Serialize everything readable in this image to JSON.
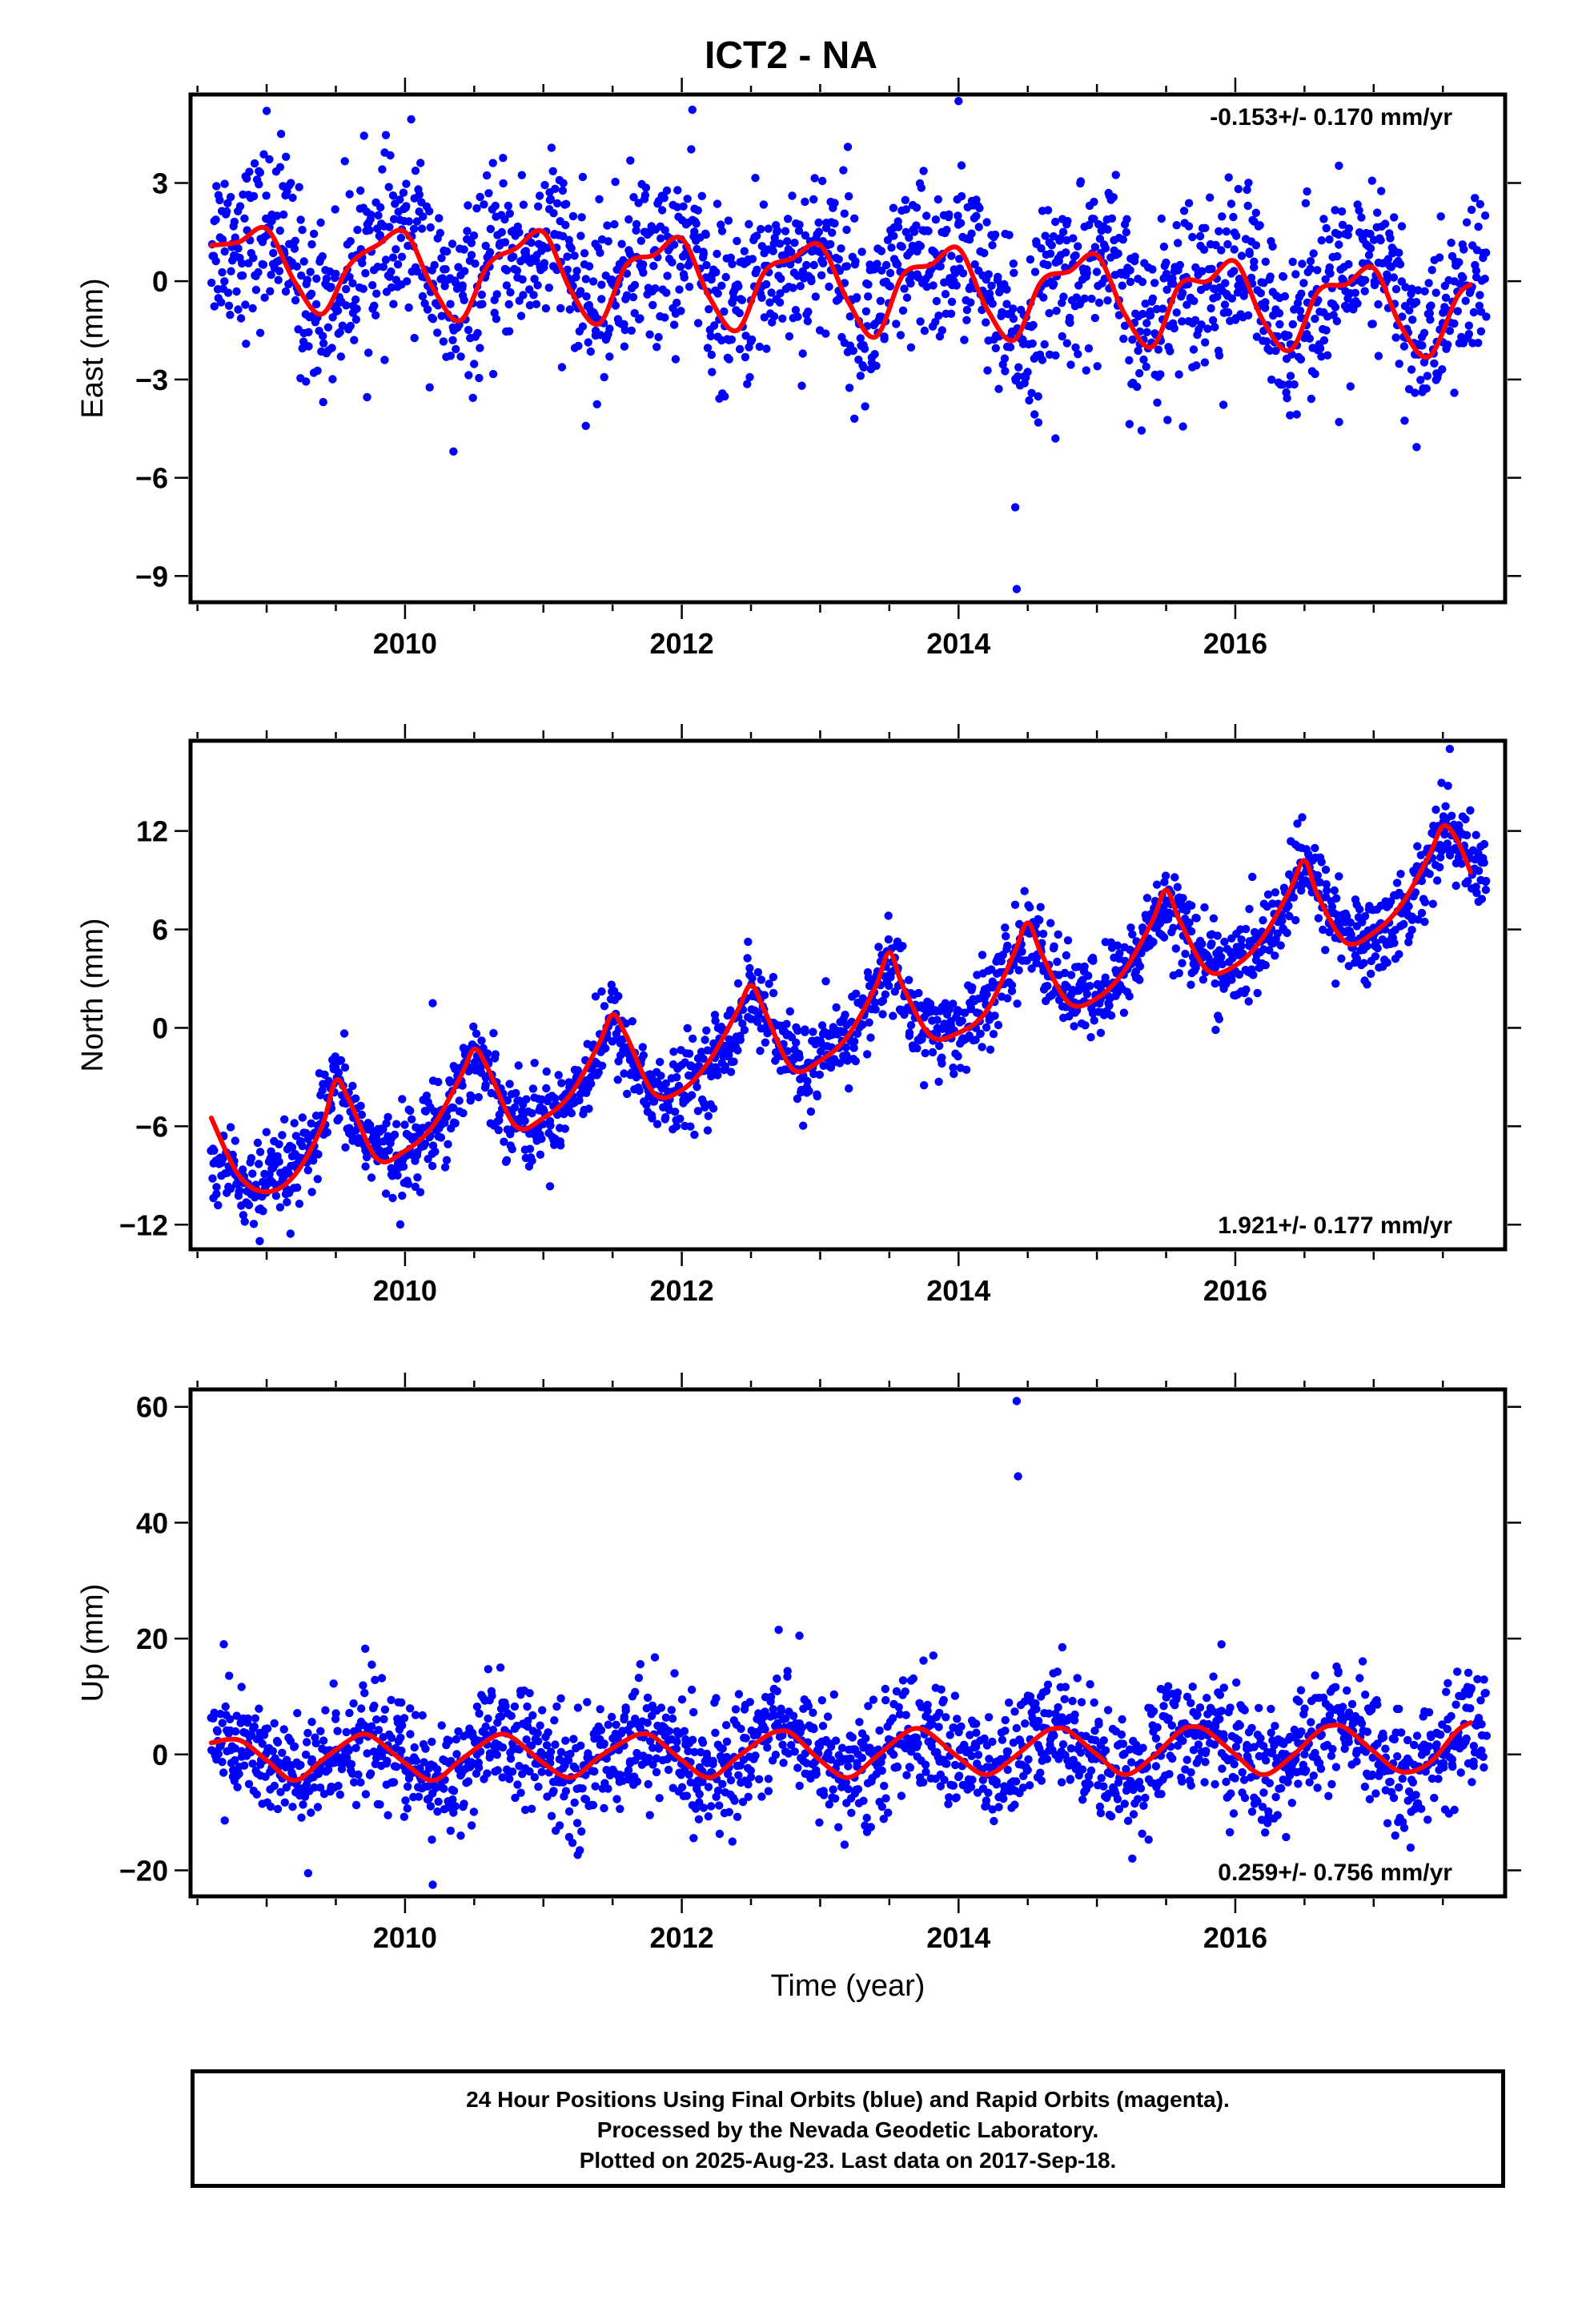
{
  "title": "ICT2 - NA",
  "colors": {
    "data": "#0000ff",
    "model": "#ff0000",
    "frame": "#000000"
  },
  "caption": {
    "line1": "24 Hour Positions Using Final Orbits (blue) and Rapid Orbits (magenta).",
    "line2": "Processed by the Nevada Geodetic Laboratory.",
    "line3": "Plotted on 2025-Aug-23. Last data on 2017-Sep-18."
  },
  "chart_data": [
    {
      "type": "scatter",
      "ylabel": "East (mm)",
      "xlabel": "",
      "xlim": [
        2008.45,
        2017.95
      ],
      "ylim": [
        -9.8,
        5.7
      ],
      "yticks": [
        3,
        0,
        -3,
        -6,
        -9
      ],
      "ytick_labels": [
        "3",
        "0",
        "−3",
        "−6",
        "−9"
      ],
      "xticks": [
        2010,
        2012,
        2014,
        2016
      ],
      "xtick_labels": [
        "2010",
        "2012",
        "2014",
        "2016"
      ],
      "rate_text": "-0.153+/- 0.170 mm/yr",
      "rate_position": "top-right",
      "series": [
        {
          "kind": "points",
          "x": [
            2008.7,
            2008.9,
            2009.1,
            2009.3,
            2009.5,
            2009.7,
            2009.9,
            2010.1,
            2010.3,
            2010.5,
            2010.7,
            2010.9,
            2011.1,
            2011.3,
            2011.5,
            2011.7,
            2011.9,
            2012.1,
            2012.3,
            2012.5,
            2012.7,
            2012.9,
            2013.1,
            2013.3,
            2013.5,
            2013.7,
            2013.9,
            2014.1,
            2014.3,
            2014.5,
            2014.7,
            2014.9,
            2015.1,
            2015.3,
            2015.5,
            2015.7,
            2015.9,
            2016.1,
            2016.3,
            2016.5,
            2016.7,
            2016.9,
            2017.1,
            2017.3,
            2017.5,
            2017.7
          ],
          "y": [
            1.3,
            1.2,
            1.8,
            -0.8,
            -0.6,
            1.0,
            0.9,
            1.5,
            -1.0,
            -0.4,
            0.9,
            0.7,
            1.5,
            -1.0,
            -0.2,
            0.8,
            0.6,
            1.2,
            -1.2,
            -0.3,
            0.6,
            0.5,
            1.2,
            -1.5,
            -0.2,
            0.5,
            0.4,
            1.0,
            -1.5,
            -1.6,
            0.2,
            0.2,
            0.8,
            -1.8,
            -0.6,
            0.2,
            0.0,
            0.6,
            -1.9,
            -0.7,
            0.0,
            0.0,
            0.5,
            -2.1,
            -1.2,
            0.0
          ],
          "outliers_x": [
            2014.41,
            2014.42,
            2013.2,
            2014.0,
            2009.0,
            2010.35,
            2014.7,
            2016.75
          ],
          "outliers_y": [
            -6.9,
            -9.4,
            4.1,
            5.5,
            5.2,
            -5.2,
            -4.8,
            -4.3
          ],
          "spread": 1.3
        },
        {
          "kind": "model",
          "x": [
            2008.6,
            2008.8,
            2009.0,
            2009.2,
            2009.4,
            2009.6,
            2009.8,
            2010.0,
            2010.2,
            2010.4,
            2010.6,
            2010.8,
            2011.0,
            2011.2,
            2011.4,
            2011.6,
            2011.8,
            2012.0,
            2012.2,
            2012.4,
            2012.6,
            2012.8,
            2013.0,
            2013.2,
            2013.4,
            2013.6,
            2013.8,
            2014.0,
            2014.2,
            2014.4,
            2014.6,
            2014.8,
            2015.0,
            2015.2,
            2015.4,
            2015.6,
            2015.8,
            2016.0,
            2016.2,
            2016.4,
            2016.6,
            2016.8,
            2017.0,
            2017.2,
            2017.4,
            2017.6,
            2017.7
          ],
          "y": [
            1.1,
            1.2,
            1.6,
            0.0,
            -1.0,
            0.5,
            1.1,
            1.5,
            -0.2,
            -1.2,
            0.5,
            1.0,
            1.5,
            -0.3,
            -1.3,
            0.5,
            0.8,
            1.3,
            -0.5,
            -1.5,
            0.3,
            0.7,
            1.1,
            -0.6,
            -1.7,
            0.2,
            0.5,
            1.0,
            -0.8,
            -1.8,
            0.0,
            0.3,
            0.8,
            -1.0,
            -2.0,
            -0.1,
            0.0,
            0.6,
            -1.2,
            -2.1,
            -0.3,
            -0.1,
            0.4,
            -1.4,
            -2.3,
            -0.5,
            -0.1
          ]
        }
      ]
    },
    {
      "type": "scatter",
      "ylabel": "North (mm)",
      "xlabel": "",
      "xlim": [
        2008.45,
        2017.95
      ],
      "ylim": [
        -13.5,
        17.5
      ],
      "yticks": [
        12,
        6,
        0,
        -6,
        -12
      ],
      "ytick_labels": [
        "12",
        "6",
        "0",
        "−6",
        "−12"
      ],
      "xticks": [
        2010,
        2012,
        2014,
        2016
      ],
      "xtick_labels": [
        "2010",
        "2012",
        "2014",
        "2016"
      ],
      "rate_text": "1.921+/- 0.177 mm/yr",
      "rate_position": "bottom-right",
      "series": [
        {
          "kind": "points",
          "x": [
            2008.7,
            2008.9,
            2009.1,
            2009.3,
            2009.5,
            2009.7,
            2009.9,
            2010.1,
            2010.3,
            2010.5,
            2010.7,
            2010.9,
            2011.1,
            2011.3,
            2011.5,
            2011.7,
            2011.9,
            2012.1,
            2012.3,
            2012.5,
            2012.7,
            2012.9,
            2013.1,
            2013.3,
            2013.5,
            2013.7,
            2013.9,
            2014.1,
            2014.3,
            2014.5,
            2014.7,
            2014.9,
            2015.1,
            2015.3,
            2015.5,
            2015.7,
            2015.9,
            2016.1,
            2016.3,
            2016.5,
            2016.7,
            2016.9,
            2017.1,
            2017.3,
            2017.5,
            2017.7
          ],
          "y": [
            -8.5,
            -10.0,
            -9.0,
            -8.0,
            -3.5,
            -6.5,
            -8.0,
            -7.0,
            -5.0,
            -1.5,
            -4.5,
            -6.0,
            -5.0,
            -3.0,
            0.5,
            -3.0,
            -4.5,
            -3.0,
            -1.5,
            2.5,
            -1.0,
            -2.5,
            -1.5,
            0.5,
            4.0,
            0.5,
            -0.5,
            0.5,
            2.5,
            6.0,
            3.0,
            1.5,
            2.5,
            4.5,
            8.0,
            5.0,
            3.5,
            4.0,
            6.5,
            10.0,
            7.0,
            5.0,
            6.0,
            8.0,
            12.5,
            10.0
          ],
          "outliers_x": [
            2008.95,
            2010.2,
            2017.55,
            2015.3,
            2013.75
          ],
          "outliers_y": [
            -13.0,
            1.5,
            17.0,
            3.0,
            -3.5
          ],
          "spread": 1.3
        },
        {
          "kind": "model",
          "x": [
            2008.6,
            2008.8,
            2009.0,
            2009.2,
            2009.4,
            2009.5,
            2009.6,
            2009.8,
            2010.0,
            2010.2,
            2010.4,
            2010.5,
            2010.6,
            2010.8,
            2011.0,
            2011.2,
            2011.4,
            2011.5,
            2011.6,
            2011.8,
            2012.0,
            2012.2,
            2012.4,
            2012.5,
            2012.6,
            2012.8,
            2013.0,
            2013.2,
            2013.4,
            2013.5,
            2013.6,
            2013.8,
            2014.0,
            2014.2,
            2014.4,
            2014.5,
            2014.6,
            2014.8,
            2015.0,
            2015.2,
            2015.4,
            2015.5,
            2015.6,
            2015.8,
            2016.0,
            2016.2,
            2016.4,
            2016.5,
            2016.6,
            2016.8,
            2017.0,
            2017.2,
            2017.4,
            2017.5,
            2017.6,
            2017.7
          ],
          "y": [
            -5.5,
            -9.0,
            -10.0,
            -9.0,
            -6.0,
            -3.2,
            -4.5,
            -8.0,
            -7.5,
            -6.0,
            -3.0,
            -1.3,
            -2.5,
            -6.0,
            -5.5,
            -4.0,
            -1.0,
            0.8,
            -0.5,
            -4.0,
            -3.8,
            -2.0,
            1.0,
            2.6,
            1.0,
            -2.5,
            -2.0,
            -0.5,
            2.5,
            4.6,
            2.5,
            -0.5,
            -0.3,
            1.0,
            4.5,
            6.4,
            4.5,
            1.5,
            1.8,
            3.5,
            6.5,
            8.4,
            6.5,
            3.5,
            3.8,
            5.5,
            8.5,
            10.2,
            8.0,
            5.2,
            5.8,
            7.5,
            10.5,
            12.3,
            11.5,
            9.5
          ]
        }
      ]
    },
    {
      "type": "scatter",
      "ylabel": "Up (mm)",
      "xlabel": "Time (year)",
      "xlim": [
        2008.45,
        2017.95
      ],
      "ylim": [
        -24.5,
        63.0
      ],
      "yticks": [
        60,
        40,
        20,
        0,
        -20
      ],
      "ytick_labels": [
        "60",
        "40",
        "20",
        "0",
        "−20"
      ],
      "xticks": [
        2010,
        2012,
        2014,
        2016
      ],
      "xtick_labels": [
        "2010",
        "2012",
        "2014",
        "2016"
      ],
      "rate_text": "0.259+/- 0.756 mm/yr",
      "rate_position": "bottom-right",
      "series": [
        {
          "kind": "points",
          "x": [
            2008.7,
            2008.9,
            2009.1,
            2009.3,
            2009.5,
            2009.7,
            2009.9,
            2010.1,
            2010.3,
            2010.5,
            2010.7,
            2010.9,
            2011.1,
            2011.3,
            2011.5,
            2011.7,
            2011.9,
            2012.1,
            2012.3,
            2012.5,
            2012.7,
            2012.9,
            2013.1,
            2013.3,
            2013.5,
            2013.7,
            2013.9,
            2014.1,
            2014.3,
            2014.5,
            2014.7,
            2014.9,
            2015.1,
            2015.3,
            2015.5,
            2015.7,
            2015.9,
            2016.1,
            2016.3,
            2016.5,
            2016.7,
            2016.9,
            2017.1,
            2017.3,
            2017.5,
            2017.7
          ],
          "y": [
            2.5,
            1.0,
            -3.0,
            -5.0,
            0.5,
            3.5,
            1.0,
            -3.5,
            -5.0,
            0.0,
            3.5,
            0.5,
            -3.0,
            -4.0,
            1.0,
            4.0,
            2.0,
            -2.5,
            -4.5,
            2.0,
            5.5,
            2.5,
            -2.0,
            -4.0,
            1.5,
            4.5,
            2.0,
            -2.0,
            -4.0,
            1.5,
            5.0,
            2.0,
            -2.5,
            -3.5,
            2.0,
            5.0,
            2.5,
            -2.0,
            -3.5,
            1.5,
            5.0,
            2.5,
            -1.5,
            -3.5,
            1.0,
            5.0
          ],
          "outliers_x": [
            2014.42,
            2014.43,
            2010.2,
            2009.3,
            2012.7,
            2012.85,
            2014.75,
            2015.9
          ],
          "outliers_y": [
            61.0,
            48.0,
            -22.5,
            -20.5,
            21.5,
            20.5,
            18.5,
            19.0
          ],
          "spread": 5.0
        },
        {
          "kind": "model",
          "x": [
            2008.6,
            2008.8,
            2009.0,
            2009.2,
            2009.4,
            2009.6,
            2009.7,
            2009.8,
            2010.0,
            2010.2,
            2010.4,
            2010.6,
            2010.7,
            2010.8,
            2011.0,
            2011.2,
            2011.4,
            2011.6,
            2011.7,
            2011.8,
            2012.0,
            2012.2,
            2012.4,
            2012.6,
            2012.7,
            2012.8,
            2013.0,
            2013.2,
            2013.4,
            2013.6,
            2013.7,
            2013.8,
            2014.0,
            2014.2,
            2014.4,
            2014.6,
            2014.7,
            2014.8,
            2015.0,
            2015.2,
            2015.4,
            2015.6,
            2015.7,
            2015.8,
            2016.0,
            2016.2,
            2016.4,
            2016.6,
            2016.7,
            2016.8,
            2017.0,
            2017.2,
            2017.4,
            2017.6,
            2017.7
          ],
          "y": [
            2.0,
            2.5,
            -1.0,
            -4.5,
            -1.0,
            2.5,
            3.5,
            2.5,
            -1.5,
            -4.5,
            -1.0,
            2.5,
            3.5,
            2.5,
            -1.5,
            -4.0,
            -0.5,
            2.5,
            3.5,
            3.0,
            -1.0,
            -4.0,
            -0.5,
            3.0,
            4.0,
            3.5,
            -1.0,
            -4.0,
            -0.5,
            3.5,
            4.5,
            3.5,
            -0.5,
            -3.5,
            -0.5,
            3.5,
            4.5,
            4.0,
            0.0,
            -3.5,
            -0.5,
            4.0,
            4.8,
            4.0,
            0.0,
            -3.5,
            -0.5,
            4.0,
            5.0,
            4.5,
            0.5,
            -3.0,
            -1.5,
            4.0,
            5.5
          ]
        }
      ]
    }
  ]
}
